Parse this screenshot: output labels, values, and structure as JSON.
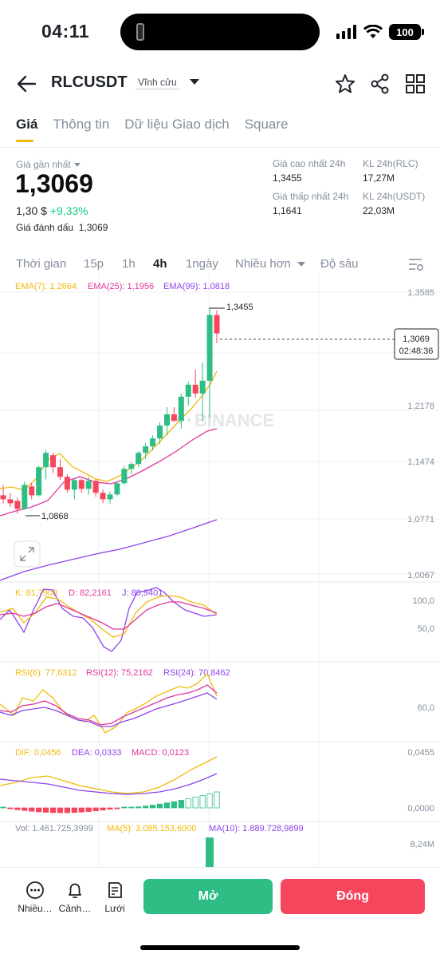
{
  "status_bar": {
    "time": "04:11",
    "battery": "100"
  },
  "header": {
    "symbol": "RLCUSDT",
    "contract_type": "Vĩnh cửu"
  },
  "tabs": [
    {
      "label": "Giá",
      "active": true
    },
    {
      "label": "Thông tin",
      "active": false
    },
    {
      "label": "Dữ liệu Giao dịch",
      "active": false
    },
    {
      "label": "Square",
      "active": false
    }
  ],
  "ticker": {
    "last_label": "Giá gần nhất",
    "last_price": "1,3069",
    "usd_value": "1,30 $",
    "change_pct": "+9,33%",
    "mark_label": "Giá đánh dấu",
    "mark_price": "1,3069",
    "high_label": "Giá cao nhất 24h",
    "high_value": "1,3455",
    "low_label": "Giá thấp nhất 24h",
    "low_value": "1,1641",
    "vol_rlc_label": "KL 24h(RLC)",
    "vol_rlc_value": "17,27M",
    "vol_usdt_label": "KL 24h(USDT)",
    "vol_usdt_value": "22,03M"
  },
  "intervals": [
    {
      "label": "Thời gian",
      "active": false
    },
    {
      "label": "15p",
      "active": false
    },
    {
      "label": "1h",
      "active": false
    },
    {
      "label": "4h",
      "active": true
    },
    {
      "label": "1ngày",
      "active": false
    },
    {
      "label": "Nhiều hơn",
      "active": false
    },
    {
      "label": "Độ sâu",
      "active": false
    }
  ],
  "indicators": {
    "ema7": "EMA(7): 1,2664",
    "ema25": "EMA(25): 1,1956",
    "ema99": "EMA(99): 1,0818",
    "k": "K: 81,7908",
    "d": "D: 82,2161",
    "j": "J: 80,9401",
    "rsi6": "RSI(6): 77,6312",
    "rsi12": "RSI(12): 75,2162",
    "rsi24": "RSI(24): 70,8462",
    "dif": "DIF: 0,0456",
    "dea": "DEA: 0,0333",
    "macd": "MACD: 0,0123",
    "vol": "Vol: 1.461.725,3999",
    "ma5": "MA(5): 3.085.153,6000",
    "ma10": "MA(10): 1.889.728,9899"
  },
  "colors": {
    "up": "#2ebd85",
    "down": "#f6465d",
    "ema7": "#f0b90b",
    "ema25": "#e0369c",
    "ema99": "#8e44ec",
    "accent": "#f0b90b"
  },
  "chart_data": {
    "type": "candlestick",
    "interval": "4h",
    "price_axis_ticks": [
      "1,3585",
      "1,2178",
      "1,1474",
      "1,0771",
      "1,0067"
    ],
    "max_marker": "1,3455",
    "min_marker": "1,0868",
    "current_price": "1,3069",
    "countdown": "02:48:36",
    "watermark": "BINANCE",
    "kdj_ticks": [
      "100,0",
      "50,0"
    ],
    "rsi_ticks": [
      "60,0"
    ],
    "macd_ticks": [
      "0,0455",
      "0,0000"
    ],
    "vol_ticks": [
      "8,24M"
    ],
    "candles": [
      {
        "o": 1.105,
        "h": 1.118,
        "l": 1.095,
        "c": 1.1
      },
      {
        "o": 1.1,
        "h": 1.108,
        "l": 1.09,
        "c": 1.095
      },
      {
        "o": 1.098,
        "h": 1.102,
        "l": 1.082,
        "c": 1.088
      },
      {
        "o": 1.088,
        "h": 1.122,
        "l": 1.087,
        "c": 1.118
      },
      {
        "o": 1.116,
        "h": 1.12,
        "l": 1.1,
        "c": 1.105
      },
      {
        "o": 1.105,
        "h": 1.142,
        "l": 1.103,
        "c": 1.14
      },
      {
        "o": 1.14,
        "h": 1.162,
        "l": 1.125,
        "c": 1.158
      },
      {
        "o": 1.155,
        "h": 1.158,
        "l": 1.133,
        "c": 1.14
      },
      {
        "o": 1.14,
        "h": 1.15,
        "l": 1.124,
        "c": 1.128
      },
      {
        "o": 1.128,
        "h": 1.131,
        "l": 1.108,
        "c": 1.112
      },
      {
        "o": 1.112,
        "h": 1.126,
        "l": 1.1,
        "c": 1.124
      },
      {
        "o": 1.124,
        "h": 1.126,
        "l": 1.108,
        "c": 1.113
      },
      {
        "o": 1.113,
        "h": 1.128,
        "l": 1.106,
        "c": 1.123
      },
      {
        "o": 1.123,
        "h": 1.125,
        "l": 1.103,
        "c": 1.108
      },
      {
        "o": 1.108,
        "h": 1.112,
        "l": 1.095,
        "c": 1.1
      },
      {
        "o": 1.1,
        "h": 1.11,
        "l": 1.094,
        "c": 1.106
      },
      {
        "o": 1.106,
        "h": 1.122,
        "l": 1.104,
        "c": 1.12
      },
      {
        "o": 1.12,
        "h": 1.142,
        "l": 1.118,
        "c": 1.138
      },
      {
        "o": 1.138,
        "h": 1.146,
        "l": 1.131,
        "c": 1.144
      },
      {
        "o": 1.144,
        "h": 1.16,
        "l": 1.14,
        "c": 1.158
      },
      {
        "o": 1.158,
        "h": 1.17,
        "l": 1.15,
        "c": 1.166
      },
      {
        "o": 1.166,
        "h": 1.18,
        "l": 1.161,
        "c": 1.176
      },
      {
        "o": 1.176,
        "h": 1.196,
        "l": 1.169,
        "c": 1.192
      },
      {
        "o": 1.192,
        "h": 1.215,
        "l": 1.18,
        "c": 1.206
      },
      {
        "o": 1.206,
        "h": 1.215,
        "l": 1.196,
        "c": 1.198
      },
      {
        "o": 1.198,
        "h": 1.232,
        "l": 1.188,
        "c": 1.228
      },
      {
        "o": 1.228,
        "h": 1.247,
        "l": 1.217,
        "c": 1.243
      },
      {
        "o": 1.243,
        "h": 1.262,
        "l": 1.227,
        "c": 1.232
      },
      {
        "o": 1.232,
        "h": 1.27,
        "l": 1.198,
        "c": 1.248
      },
      {
        "o": 1.248,
        "h": 1.338,
        "l": 1.202,
        "c": 1.33
      },
      {
        "o": 1.33,
        "h": 1.336,
        "l": 1.295,
        "c": 1.307
      }
    ]
  },
  "bottom_bar": {
    "more_label": "Nhiều…",
    "alert_label": "Cảnh…",
    "grid_label": "Lưới",
    "open_label": "Mở",
    "close_label": "Đóng"
  }
}
